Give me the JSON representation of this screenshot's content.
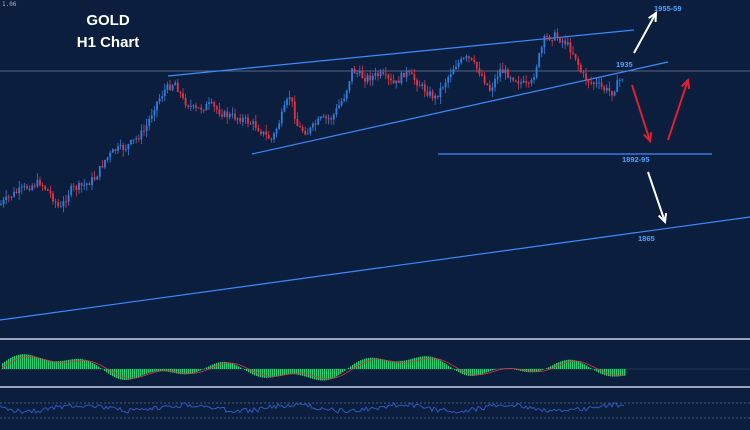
{
  "chart_data": {
    "type": "candlestick",
    "title": "GOLD",
    "subtitle": "H1 Chart",
    "corner_readout": "1.06",
    "colors": {
      "background": "#0b1e3d",
      "bull": "#2f7fe0",
      "bear": "#e23545",
      "trendline": "#3d8bff",
      "level_text": "#4da3ff",
      "arrow_up_white": "#ffffff",
      "arrow_red": "#e02030",
      "macd_hist": "#2ecc71",
      "macd_signal": "#e23545",
      "rsi_line": "#2f5fd0"
    },
    "levels": [
      {
        "name": "1955-59",
        "label": "1955-59"
      },
      {
        "name": "1935",
        "label": "1935"
      },
      {
        "name": "1892-95",
        "label": "1892-95"
      },
      {
        "name": "1865",
        "label": "1865"
      }
    ],
    "projection_arrows": [
      {
        "name": "arrow-up-white",
        "color": "#ffffff"
      },
      {
        "name": "arrow-down-red",
        "color": "#e02030"
      },
      {
        "name": "arrow-up-red",
        "color": "#e02030"
      },
      {
        "name": "arrow-down-white",
        "color": "#ffffff"
      }
    ],
    "indicators": [
      "MACD histogram",
      "RSI"
    ]
  }
}
